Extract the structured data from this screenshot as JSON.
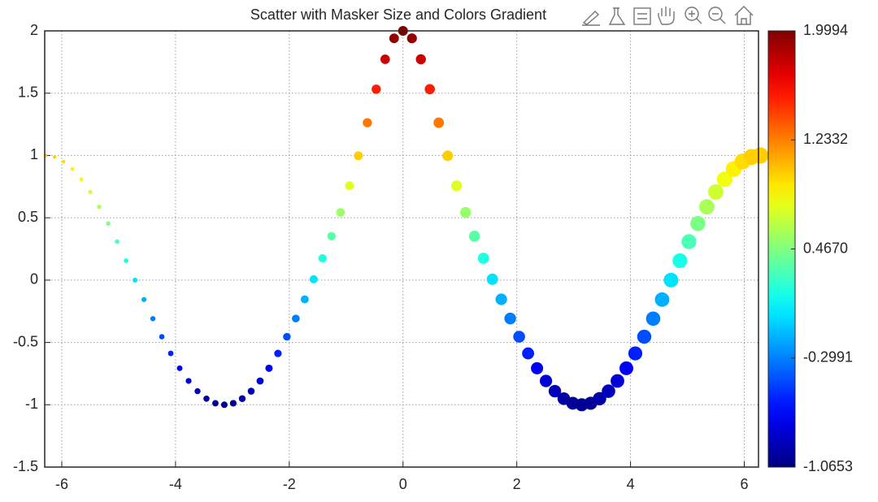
{
  "chart_data": {
    "type": "scatter",
    "title": "Scatter with Masker Size and Colors Gradient",
    "x": [
      -6.283,
      -6.126,
      -5.969,
      -5.812,
      -5.655,
      -5.498,
      -5.341,
      -5.184,
      -5.027,
      -4.869,
      -4.712,
      -4.555,
      -4.398,
      -4.241,
      -4.084,
      -3.927,
      -3.77,
      -3.613,
      -3.456,
      -3.299,
      -3.142,
      -2.985,
      -2.827,
      -2.67,
      -2.513,
      -2.356,
      -2.199,
      -2.042,
      -1.885,
      -1.728,
      -1.571,
      -1.414,
      -1.257,
      -1.1,
      -0.942,
      -0.785,
      -0.628,
      -0.471,
      -0.314,
      -0.157,
      0,
      0.157,
      0.314,
      0.471,
      0.628,
      0.785,
      0.942,
      1.1,
      1.257,
      1.414,
      1.571,
      1.728,
      1.885,
      2.042,
      2.199,
      2.356,
      2.513,
      2.67,
      2.827,
      2.985,
      3.142,
      3.299,
      3.456,
      3.613,
      3.77,
      3.927,
      4.084,
      4.241,
      4.398,
      4.555,
      4.712,
      4.869,
      5.027,
      5.184,
      5.341,
      5.498,
      5.655,
      5.812,
      5.969,
      6.126,
      6.283
    ],
    "y": [
      1,
      0.988,
      0.951,
      0.891,
      0.809,
      0.707,
      0.588,
      0.454,
      0.309,
      0.156,
      0,
      -0.156,
      -0.309,
      -0.454,
      -0.588,
      -0.707,
      -0.809,
      -0.891,
      -0.951,
      -0.988,
      -1,
      -0.988,
      -0.951,
      -0.891,
      -0.809,
      -0.707,
      -0.588,
      -0.454,
      -0.308,
      -0.154,
      0.007,
      0.175,
      0.352,
      0.543,
      0.757,
      0.998,
      1.263,
      1.532,
      1.772,
      1.94,
      2,
      1.94,
      1.772,
      1.532,
      1.263,
      0.998,
      0.757,
      0.543,
      0.352,
      0.175,
      0.007,
      -0.154,
      -0.308,
      -0.454,
      -0.588,
      -0.707,
      -0.809,
      -0.891,
      -0.951,
      -0.988,
      -1,
      -0.988,
      -0.951,
      -0.891,
      -0.809,
      -0.707,
      -0.588,
      -0.454,
      -0.309,
      -0.156,
      0,
      0.156,
      0.309,
      0.454,
      0.588,
      0.707,
      0.809,
      0.891,
      0.951,
      0.988,
      1
    ],
    "xlim": [
      -6.3,
      6.25
    ],
    "ylim": [
      -1.5,
      2
    ],
    "xticks": [
      -6,
      -4,
      -2,
      0,
      2,
      4,
      6
    ],
    "yticks": [
      -1.5,
      -1,
      -0.5,
      0,
      0.5,
      1,
      1.5,
      2
    ],
    "grid": true,
    "colormap": "jet",
    "clim": [
      -1.0653,
      1.9994
    ],
    "cticks": [
      -1.0653,
      -0.2991,
      {
        "value": 0.467,
        "label": "0.4670"
      },
      1.2332,
      1.9994
    ]
  }
}
